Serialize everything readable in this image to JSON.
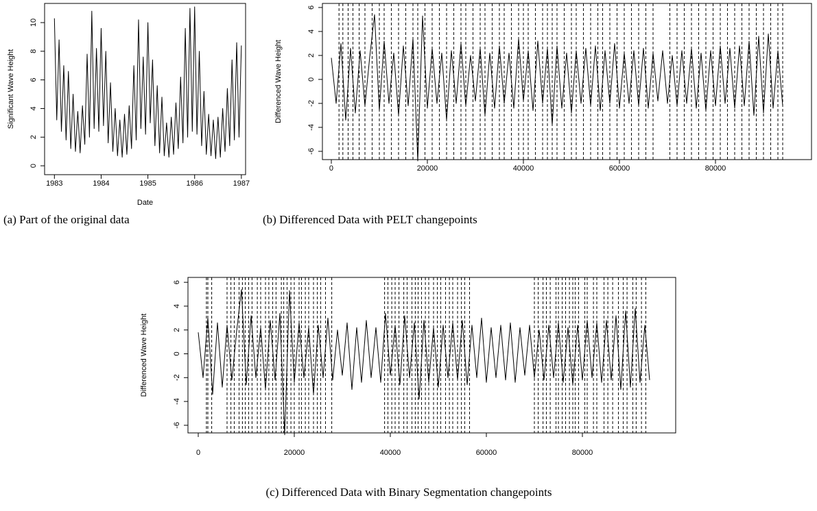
{
  "chart_data": [
    {
      "type": "line",
      "ylabel": "Significant Wave Height",
      "xlabel": "Date",
      "caption": "(a)  Part of the original data",
      "x": [
        1983,
        1983.05,
        1983.1,
        1983.15,
        1983.2,
        1983.25,
        1983.3,
        1983.35,
        1983.4,
        1983.45,
        1983.5,
        1983.55,
        1983.6,
        1983.65,
        1983.7,
        1983.75,
        1983.8,
        1983.85,
        1983.9,
        1983.95,
        1984,
        1984.05,
        1984.1,
        1984.15,
        1984.2,
        1984.25,
        1984.3,
        1984.35,
        1984.4,
        1984.45,
        1984.5,
        1984.55,
        1984.6,
        1984.65,
        1984.7,
        1984.75,
        1984.8,
        1984.85,
        1984.9,
        1984.95,
        1985,
        1985.05,
        1985.1,
        1985.15,
        1985.2,
        1985.25,
        1985.3,
        1985.35,
        1985.4,
        1985.45,
        1985.5,
        1985.55,
        1985.6,
        1985.65,
        1985.7,
        1985.75,
        1985.8,
        1985.85,
        1985.9,
        1985.95,
        1986,
        1986.05,
        1986.1,
        1986.15,
        1986.2,
        1986.25,
        1986.3,
        1986.35,
        1986.4,
        1986.45,
        1986.5,
        1986.55,
        1986.6,
        1986.65,
        1986.7,
        1986.75,
        1986.8,
        1986.85,
        1986.9,
        1986.95,
        1987
      ],
      "values": [
        10.3,
        3.2,
        8.8,
        2.4,
        7.0,
        1.8,
        6.6,
        1.2,
        5.0,
        1.0,
        3.8,
        0.9,
        4.2,
        1.5,
        7.8,
        2.0,
        10.8,
        2.6,
        8.2,
        2.4,
        9.6,
        2.8,
        8.0,
        1.6,
        5.8,
        1.0,
        4.0,
        0.7,
        3.2,
        0.6,
        3.6,
        0.8,
        4.2,
        1.2,
        7.0,
        1.8,
        10.2,
        2.6,
        7.6,
        2.2,
        10.0,
        3.0,
        7.4,
        1.4,
        5.6,
        0.9,
        4.8,
        0.7,
        3.0,
        0.6,
        3.4,
        0.8,
        4.4,
        1.2,
        6.2,
        1.6,
        9.6,
        2.0,
        11.0,
        2.4,
        11.1,
        2.2,
        8.0,
        1.4,
        5.2,
        0.8,
        3.6,
        0.7,
        3.2,
        0.5,
        3.4,
        0.6,
        4.0,
        1.0,
        5.4,
        1.4,
        7.4,
        1.8,
        8.6,
        2.0,
        8.4
      ],
      "color": "#000000",
      "xlim": [
        1982.79,
        1987.09
      ],
      "xticks": [
        1983,
        1984,
        1985,
        1986,
        1987
      ],
      "ylim": [
        -0.62,
        11.34
      ],
      "yticks": [
        0,
        2,
        4,
        6,
        8,
        10
      ]
    },
    {
      "type": "line",
      "ylabel": "Differenced Wave Height",
      "caption": "(b)  Differenced Data with PELT changepoints",
      "x": [
        0,
        1000,
        2000,
        3000,
        4000,
        5000,
        6000,
        7000,
        8000,
        9000,
        10000,
        11000,
        12000,
        13000,
        14000,
        15000,
        16000,
        17000,
        18000,
        19000,
        20000,
        21000,
        22000,
        23000,
        24000,
        25000,
        26000,
        27000,
        28000,
        29000,
        30000,
        31000,
        32000,
        33000,
        34000,
        35000,
        36000,
        37000,
        38000,
        39000,
        40000,
        41000,
        42000,
        43000,
        44000,
        45000,
        46000,
        47000,
        48000,
        49000,
        50000,
        51000,
        52000,
        53000,
        54000,
        55000,
        56000,
        57000,
        58000,
        59000,
        60000,
        61000,
        62000,
        63000,
        64000,
        65000,
        66000,
        67000,
        68000,
        69000,
        70000,
        71000,
        72000,
        73000,
        74000,
        75000,
        76000,
        77000,
        78000,
        79000,
        80000,
        81000,
        82000,
        83000,
        84000,
        85000,
        86000,
        87000,
        88000,
        89000,
        90000,
        91000,
        92000,
        93000,
        94000
      ],
      "values": [
        1.8,
        -2.0,
        3.0,
        -3.4,
        2.6,
        -2.8,
        2.4,
        -2.2,
        1.9,
        5.4,
        -2.6,
        3.2,
        -2.0,
        2.2,
        -3.0,
        2.8,
        -2.2,
        3.4,
        -6.8,
        5.3,
        -2.4,
        2.6,
        -2.0,
        2.2,
        -3.4,
        2.4,
        -2.0,
        3.0,
        -2.2,
        2.0,
        -1.8,
        2.6,
        -3.0,
        2.2,
        -2.4,
        2.8,
        -2.0,
        2.2,
        -2.4,
        3.4,
        -1.8,
        2.4,
        -2.6,
        3.2,
        -2.0,
        2.6,
        -3.8,
        2.8,
        -2.4,
        2.2,
        -2.8,
        2.4,
        -2.0,
        2.6,
        -2.2,
        2.8,
        -2.6,
        2.4,
        -2.0,
        3.0,
        -2.4,
        2.2,
        -2.0,
        2.4,
        -2.2,
        2.6,
        -2.4,
        2.2,
        -1.8,
        2.4,
        -2.0,
        2.0,
        -2.2,
        2.4,
        -2.0,
        2.6,
        -2.4,
        2.2,
        -2.6,
        2.4,
        -2.2,
        2.8,
        -2.0,
        2.6,
        -2.4,
        2.8,
        -2.2,
        3.2,
        -3.0,
        3.6,
        -2.8,
        3.8,
        -2.4,
        2.4,
        -2.2
      ],
      "changepoints": [
        1600,
        2400,
        3500,
        4500,
        5800,
        7000,
        8500,
        10000,
        11000,
        12500,
        14000,
        15500,
        17000,
        18000,
        19500,
        21000,
        22500,
        24000,
        25500,
        27000,
        28000,
        29500,
        31000,
        32000,
        33500,
        35000,
        36000,
        37500,
        39000,
        40000,
        41000,
        42500,
        44000,
        45000,
        46000,
        47000,
        48500,
        50000,
        51000,
        52500,
        54000,
        55500,
        56500,
        58000,
        59500,
        61000,
        62500,
        64000,
        65500,
        67000,
        70500,
        72000,
        73500,
        75000,
        76500,
        78000,
        79500,
        81000,
        82500,
        84000,
        85500,
        87000,
        88500,
        90000,
        91500,
        93000,
        94000
      ],
      "color": "#000000",
      "xlim": [
        -1857,
        100000
      ],
      "xticks": [
        0,
        20000,
        40000,
        60000,
        80000
      ],
      "ylim": [
        -6.69,
        6.34
      ],
      "yticks": [
        -6,
        -4,
        -2,
        0,
        2,
        4,
        6
      ]
    },
    {
      "type": "line",
      "ylabel": "Differenced Wave Height",
      "caption": "(c)  Differenced Data with Binary Segmentation changepoints",
      "x": [
        0,
        1000,
        2000,
        3000,
        4000,
        5000,
        6000,
        7000,
        8000,
        9000,
        10000,
        11000,
        12000,
        13000,
        14000,
        15000,
        16000,
        17000,
        18000,
        19000,
        20000,
        21000,
        22000,
        23000,
        24000,
        25000,
        26000,
        27000,
        28000,
        29000,
        30000,
        31000,
        32000,
        33000,
        34000,
        35000,
        36000,
        37000,
        38000,
        39000,
        40000,
        41000,
        42000,
        43000,
        44000,
        45000,
        46000,
        47000,
        48000,
        49000,
        50000,
        51000,
        52000,
        53000,
        54000,
        55000,
        56000,
        57000,
        58000,
        59000,
        60000,
        61000,
        62000,
        63000,
        64000,
        65000,
        66000,
        67000,
        68000,
        69000,
        70000,
        71000,
        72000,
        73000,
        74000,
        75000,
        76000,
        77000,
        78000,
        79000,
        80000,
        81000,
        82000,
        83000,
        84000,
        85000,
        86000,
        87000,
        88000,
        89000,
        90000,
        91000,
        92000,
        93000,
        94000
      ],
      "values": [
        1.8,
        -2.0,
        3.0,
        -3.4,
        2.6,
        -2.8,
        2.4,
        -2.2,
        1.9,
        5.4,
        -2.6,
        3.2,
        -2.0,
        2.2,
        -3.0,
        2.8,
        -2.2,
        3.4,
        -6.8,
        5.3,
        -2.4,
        2.6,
        -2.0,
        2.2,
        -3.4,
        2.4,
        -2.0,
        3.0,
        -2.2,
        2.0,
        -1.8,
        2.6,
        -3.0,
        2.2,
        -2.4,
        2.8,
        -2.0,
        2.2,
        -2.4,
        3.4,
        -1.8,
        2.4,
        -2.6,
        3.2,
        -2.0,
        2.6,
        -3.8,
        2.8,
        -2.4,
        2.2,
        -2.8,
        2.4,
        -2.0,
        2.6,
        -2.2,
        2.8,
        -2.6,
        2.4,
        -2.0,
        3.0,
        -2.4,
        2.2,
        -2.0,
        2.4,
        -2.2,
        2.6,
        -2.4,
        2.2,
        -1.8,
        2.4,
        -2.0,
        2.0,
        -2.2,
        2.4,
        -2.0,
        2.6,
        -2.4,
        2.2,
        -2.6,
        2.4,
        -2.2,
        2.8,
        -2.0,
        2.6,
        -2.4,
        2.8,
        -2.2,
        3.2,
        -3.0,
        3.6,
        -2.8,
        3.8,
        -2.4,
        2.4,
        -2.2
      ],
      "changepoints": [
        1700,
        2000,
        2800,
        6000,
        6800,
        7500,
        8500,
        9200,
        9800,
        10500,
        11200,
        12300,
        13000,
        14000,
        14700,
        15500,
        16200,
        17300,
        17800,
        18500,
        19300,
        20000,
        21000,
        21500,
        22300,
        23000,
        24000,
        24800,
        25500,
        26500,
        27800,
        38800,
        39500,
        40300,
        41000,
        41800,
        42800,
        43500,
        44500,
        45200,
        45800,
        46500,
        47300,
        48000,
        49000,
        49800,
        50500,
        51500,
        52300,
        53000,
        54000,
        54800,
        55500,
        56500,
        70000,
        70800,
        71800,
        72500,
        73300,
        74500,
        75000,
        75800,
        76500,
        77300,
        78000,
        78500,
        79200,
        80500,
        81000,
        82300,
        83000,
        84500,
        85300,
        86300,
        87500,
        88500,
        89300,
        90500,
        91200,
        92300,
        93200
      ],
      "color": "#000000",
      "xlim": [
        -2143,
        99429
      ],
      "xticks": [
        0,
        20000,
        40000,
        60000,
        80000
      ],
      "ylim": [
        -6.64,
        6.41
      ],
      "yticks": [
        -6,
        -4,
        -2,
        0,
        2,
        4,
        6
      ]
    }
  ]
}
